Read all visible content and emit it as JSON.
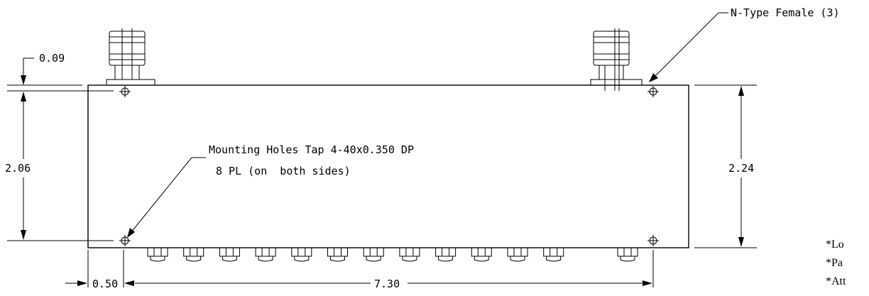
{
  "dimensions": {
    "top_offset": "0.09",
    "height_holes": "2.06",
    "height_body": "2.24",
    "left_offset": "0.50",
    "width_holes": "7.30"
  },
  "callouts": {
    "connector": "N-Type Female (3)",
    "holes_line1": "Mounting Holes Tap 4-40x0.350 DP",
    "holes_line2": "8 PL (on  both sides)"
  },
  "notes": [
    "*Lo",
    "*Pa",
    "*Att"
  ]
}
